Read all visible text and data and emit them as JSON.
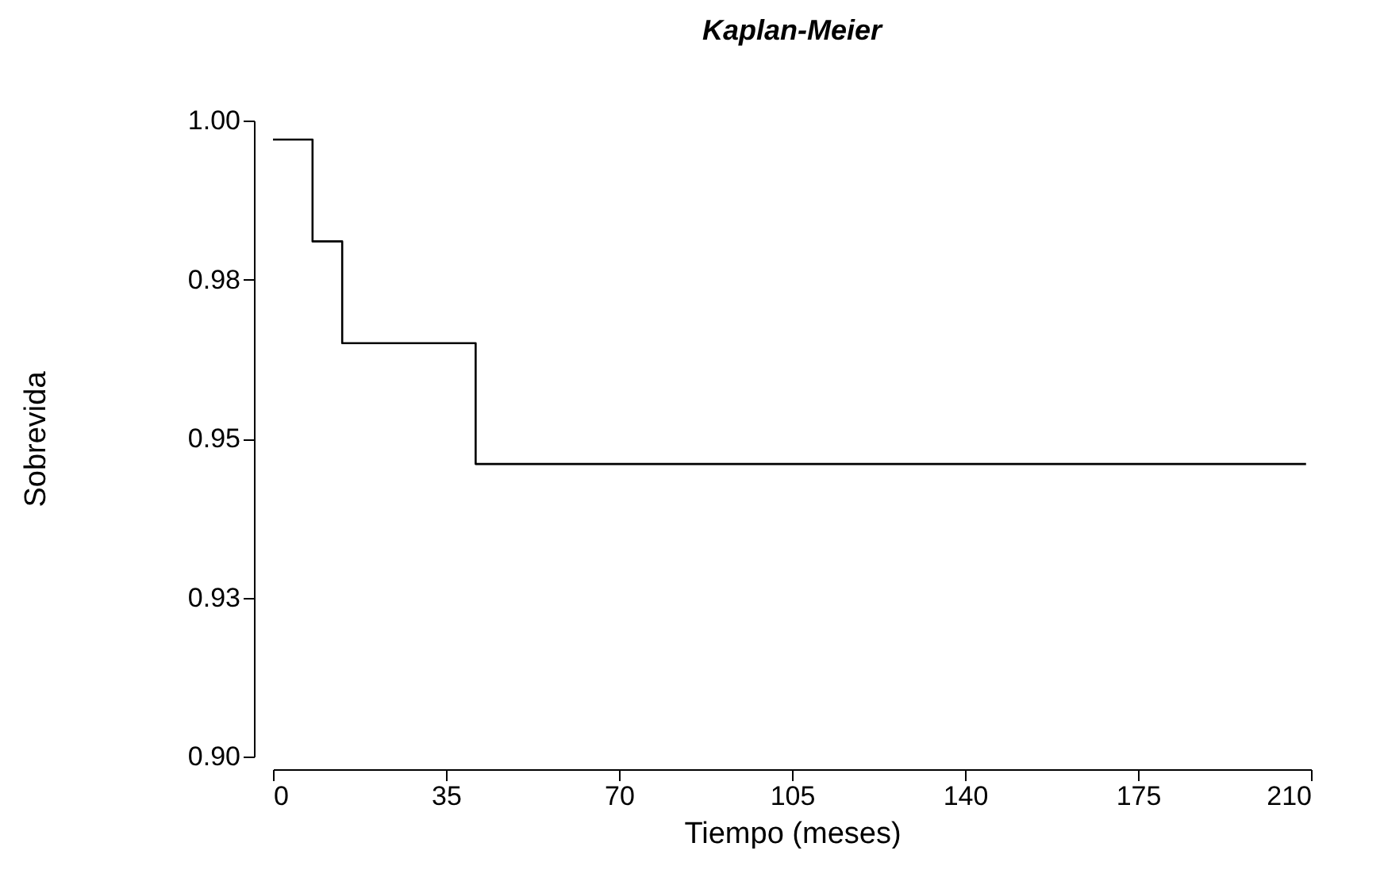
{
  "chart_data": {
    "type": "step",
    "title": "Kaplan-Meier",
    "xlabel": "Tiempo (meses)",
    "ylabel": "Sobrevida",
    "x": [
      0,
      8,
      14,
      41,
      209
    ],
    "series": [
      {
        "color": "#000000",
        "values": [
          0.997,
          0.981,
          0.965,
          0.946,
          0.946
        ]
      }
    ],
    "xlim": [
      0,
      210
    ],
    "xticks": [
      0,
      35,
      70,
      105,
      140,
      175,
      210
    ],
    "ylim": [
      0.9,
      1.0
    ],
    "yticks": [
      {
        "value": 0.9,
        "label": "0.90"
      },
      {
        "value": 0.925,
        "label": "0.93"
      },
      {
        "value": 0.95,
        "label": "0.95"
      },
      {
        "value": 0.975,
        "label": "0.98"
      },
      {
        "value": 1.0,
        "label": "1.00"
      }
    ],
    "grid": false,
    "marker": "none",
    "line_style": "solid"
  }
}
